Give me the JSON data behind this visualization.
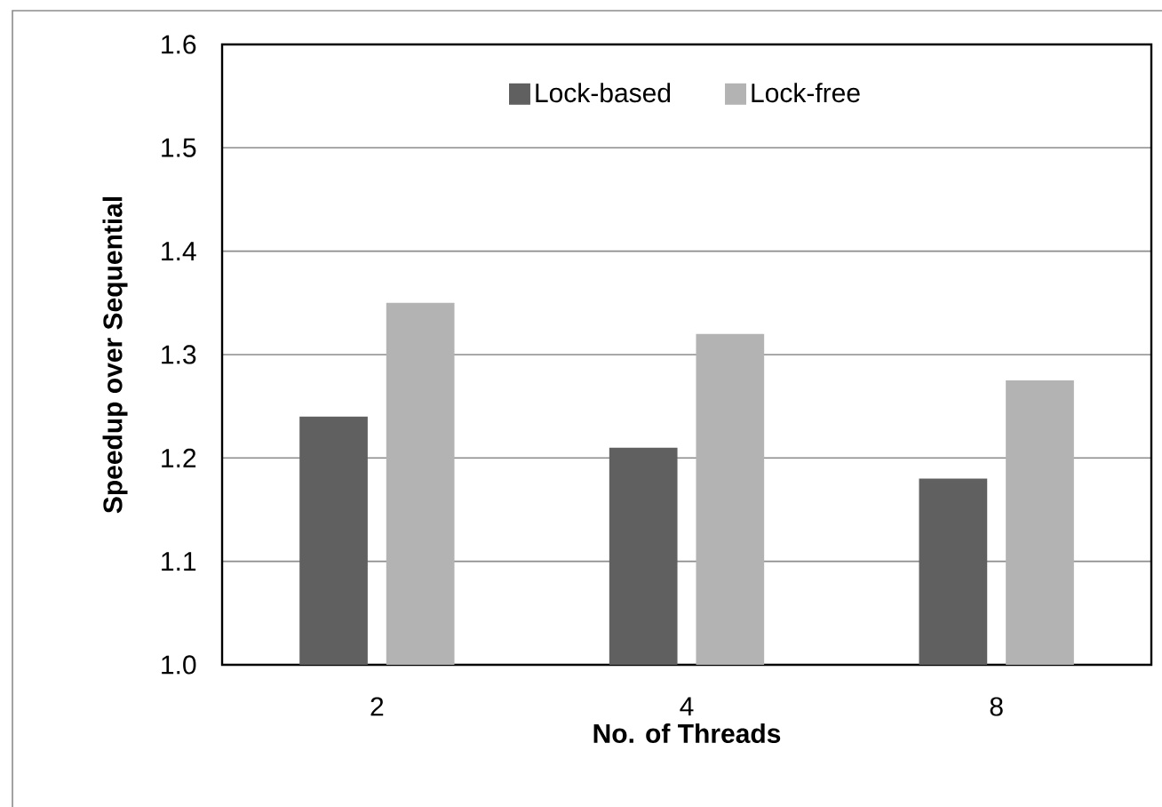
{
  "chart_data": {
    "type": "bar",
    "xlabel": "No. of Threads",
    "ylabel": "Speedup over Sequential",
    "categories": [
      "2",
      "4",
      "8"
    ],
    "series": [
      {
        "name": "Lock-based",
        "color": "#606060",
        "values": [
          1.24,
          1.21,
          1.18
        ]
      },
      {
        "name": "Lock-free",
        "color": "#b3b3b3",
        "values": [
          1.35,
          1.32,
          1.275
        ]
      }
    ],
    "ylim": [
      1.0,
      1.6
    ],
    "yticks": [
      {
        "value": 1.0,
        "label": "1.0"
      },
      1.1,
      1.2,
      1.3,
      1.4,
      1.5,
      1.6
    ],
    "grid": "y",
    "legend": "top"
  }
}
